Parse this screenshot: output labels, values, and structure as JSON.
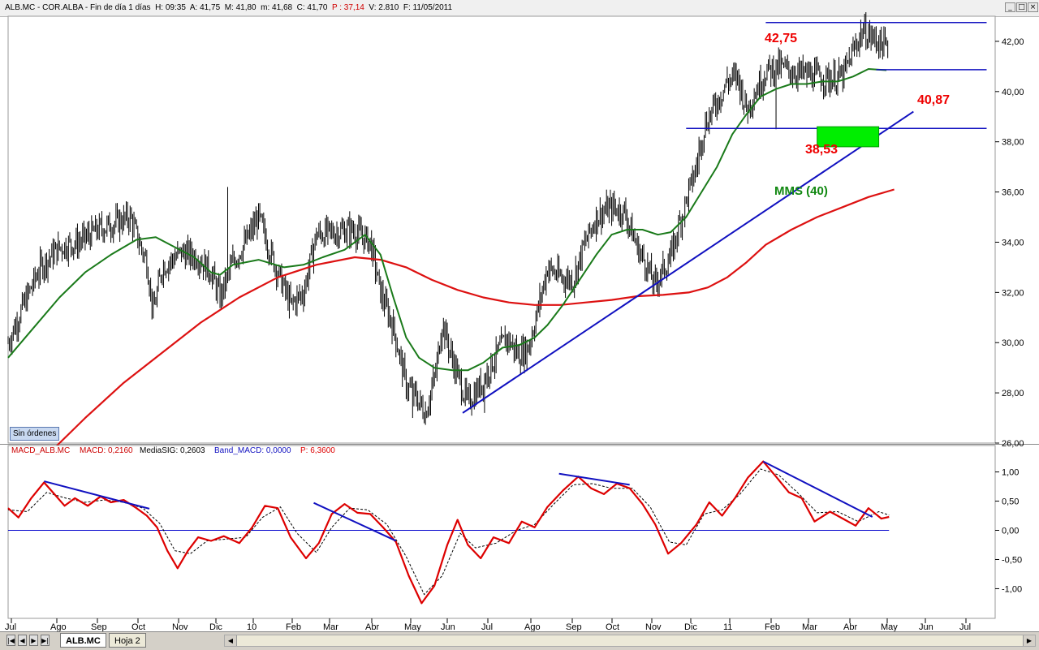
{
  "window": {
    "title_pre": "ALB.MC - COR.ALBA - Fin de día 1 días  H: 09:35  A: 41,75  M: 41,80  m: 41,68  C: 41,70  ",
    "title_p": "P : 37,14",
    "title_post": "  V: 2.810  F: 11/05/2011",
    "buttons": [
      "_",
      "□",
      "×"
    ]
  },
  "badge": "Sin órdenes",
  "annotations": {
    "high": "42,75",
    "support": "40,87",
    "low": "38,53",
    "ma_label": "MMS (40)"
  },
  "macd_header": {
    "name": "MACD_ALB.MC",
    "macd": "MACD: 0,2160",
    "signal": "MediaSIG: 0,2603",
    "band": "Band_MACD: 0,0000",
    "p": "P: 6,3600"
  },
  "tabs": {
    "nav": [
      "|◀",
      "◀",
      "▶",
      "▶|"
    ],
    "sheets": [
      "ALB.MC",
      "Hoja 2"
    ]
  },
  "colors": {
    "price": "#000000",
    "mma40": "#1a7a1a",
    "mma200": "#dd1111",
    "trend": "#1010c0",
    "macd": "#dd0000",
    "signal": "#000000",
    "box": "#00ee00"
  },
  "chart_data": [
    {
      "type": "ohlc",
      "ylim": [
        26,
        43
      ],
      "yticks": [
        "26,00",
        "28,00",
        "30,00",
        "32,00",
        "34,00",
        "36,00",
        "38,00",
        "40,00",
        "42,00"
      ],
      "x_ticks": [
        "Jul",
        "Ago",
        "Sep",
        "Oct",
        "Nov",
        "Dic",
        "10",
        "Feb",
        "Mar",
        "Abr",
        "May",
        "Jun",
        "Jul",
        "Ago",
        "Sep",
        "Oct",
        "Nov",
        "Dic",
        "11",
        "Feb",
        "Mar",
        "Abr",
        "May",
        "Jun",
        "Jul"
      ],
      "close_path": [
        [
          0,
          30.0
        ],
        [
          12,
          31.5
        ],
        [
          25,
          33.0
        ],
        [
          40,
          33.8
        ],
        [
          55,
          34.0
        ],
        [
          70,
          34.5
        ],
        [
          85,
          34.8
        ],
        [
          95,
          35.0
        ],
        [
          102,
          34.0
        ],
        [
          108,
          33.2
        ],
        [
          113,
          31.2
        ],
        [
          120,
          33.0
        ],
        [
          135,
          33.6
        ],
        [
          148,
          33.4
        ],
        [
          158,
          32.8
        ],
        [
          165,
          31.8
        ],
        [
          175,
          33.2
        ],
        [
          185,
          34.0
        ],
        [
          195,
          35.0
        ],
        [
          205,
          33.5
        ],
        [
          213,
          32.4
        ],
        [
          220,
          31.5
        ],
        [
          230,
          32.0
        ],
        [
          240,
          34.3
        ],
        [
          255,
          34.4
        ],
        [
          268,
          34.5
        ],
        [
          282,
          34.0
        ],
        [
          290,
          32.0
        ],
        [
          300,
          30.6
        ],
        [
          310,
          28.3
        ],
        [
          318,
          27.8
        ],
        [
          325,
          27.2
        ],
        [
          333,
          28.8
        ],
        [
          338,
          30.8
        ],
        [
          345,
          29.5
        ],
        [
          352,
          28.4
        ],
        [
          358,
          27.6
        ],
        [
          368,
          28.3
        ],
        [
          378,
          29.3
        ],
        [
          388,
          30.2
        ],
        [
          398,
          29.5
        ],
        [
          405,
          29.8
        ],
        [
          412,
          31.2
        ],
        [
          420,
          33.0
        ],
        [
          430,
          32.6
        ],
        [
          440,
          32.5
        ],
        [
          448,
          33.8
        ],
        [
          458,
          35.0
        ],
        [
          470,
          35.4
        ],
        [
          480,
          35.2
        ],
        [
          490,
          33.8
        ],
        [
          498,
          33.0
        ],
        [
          503,
          32.3
        ],
        [
          510,
          32.9
        ],
        [
          516,
          33.4
        ],
        [
          522,
          34.6
        ],
        [
          530,
          36.0
        ],
        [
          536,
          37.0
        ],
        [
          542,
          38.6
        ],
        [
          552,
          39.6
        ],
        [
          560,
          40.4
        ],
        [
          568,
          40.6
        ],
        [
          575,
          39.3
        ],
        [
          582,
          40.0
        ],
        [
          590,
          40.8
        ],
        [
          600,
          41.0
        ],
        [
          610,
          40.8
        ],
        [
          620,
          40.7
        ],
        [
          630,
          40.6
        ],
        [
          640,
          40.5
        ],
        [
          650,
          40.6
        ],
        [
          658,
          41.6
        ],
        [
          665,
          42.4
        ],
        [
          675,
          42.1
        ],
        [
          685,
          41.7
        ]
      ],
      "spikes": [
        [
          171,
          36.2
        ],
        [
          315,
          27.0
        ],
        [
          371,
          27.2
        ],
        [
          470,
          35.8
        ],
        [
          538,
          38.2
        ],
        [
          560,
          41.0
        ],
        [
          598,
          38.5
        ],
        [
          666,
          42.75
        ]
      ],
      "mma40": [
        [
          0,
          29.4
        ],
        [
          20,
          30.6
        ],
        [
          40,
          31.8
        ],
        [
          60,
          32.8
        ],
        [
          80,
          33.5
        ],
        [
          100,
          34.1
        ],
        [
          115,
          34.2
        ],
        [
          130,
          33.8
        ],
        [
          145,
          33.4
        ],
        [
          158,
          32.8
        ],
        [
          165,
          32.7
        ],
        [
          175,
          33.1
        ],
        [
          195,
          33.3
        ],
        [
          215,
          33.0
        ],
        [
          230,
          33.1
        ],
        [
          245,
          33.4
        ],
        [
          262,
          33.7
        ],
        [
          278,
          34.3
        ],
        [
          290,
          33.5
        ],
        [
          300,
          31.8
        ],
        [
          310,
          30.2
        ],
        [
          320,
          29.4
        ],
        [
          332,
          29.0
        ],
        [
          346,
          28.9
        ],
        [
          358,
          28.9
        ],
        [
          370,
          29.2
        ],
        [
          385,
          29.8
        ],
        [
          398,
          29.9
        ],
        [
          410,
          30.2
        ],
        [
          420,
          30.7
        ],
        [
          432,
          31.5
        ],
        [
          445,
          32.5
        ],
        [
          458,
          33.5
        ],
        [
          470,
          34.3
        ],
        [
          482,
          34.5
        ],
        [
          494,
          34.5
        ],
        [
          506,
          34.3
        ],
        [
          516,
          34.4
        ],
        [
          528,
          35.0
        ],
        [
          540,
          36.0
        ],
        [
          552,
          37.0
        ],
        [
          564,
          38.3
        ],
        [
          575,
          39.1
        ],
        [
          586,
          39.8
        ],
        [
          598,
          40.1
        ],
        [
          610,
          40.3
        ],
        [
          622,
          40.3
        ],
        [
          634,
          40.4
        ],
        [
          646,
          40.4
        ],
        [
          658,
          40.6
        ],
        [
          670,
          40.9
        ],
        [
          684,
          40.85
        ]
      ],
      "mma200": [
        [
          0,
          24.0
        ],
        [
          30,
          25.5
        ],
        [
          60,
          27.0
        ],
        [
          90,
          28.4
        ],
        [
          120,
          29.6
        ],
        [
          150,
          30.8
        ],
        [
          180,
          31.8
        ],
        [
          210,
          32.6
        ],
        [
          240,
          33.1
        ],
        [
          270,
          33.4
        ],
        [
          290,
          33.3
        ],
        [
          310,
          33.0
        ],
        [
          330,
          32.5
        ],
        [
          350,
          32.1
        ],
        [
          370,
          31.8
        ],
        [
          390,
          31.6
        ],
        [
          410,
          31.5
        ],
        [
          430,
          31.5
        ],
        [
          450,
          31.6
        ],
        [
          470,
          31.7
        ],
        [
          490,
          31.85
        ],
        [
          510,
          31.9
        ],
        [
          530,
          32.0
        ],
        [
          545,
          32.2
        ],
        [
          560,
          32.6
        ],
        [
          575,
          33.2
        ],
        [
          590,
          33.9
        ],
        [
          610,
          34.5
        ],
        [
          630,
          35.0
        ],
        [
          650,
          35.4
        ],
        [
          670,
          35.8
        ],
        [
          690,
          36.1
        ]
      ],
      "levels": [
        {
          "value": 42.75,
          "x0": 590,
          "x1": 762
        },
        {
          "value": 40.87,
          "x0": 676,
          "x1": 762
        },
        {
          "value": 38.53,
          "x0": 528,
          "x1": 762
        }
      ],
      "trend_line": [
        [
          354,
          27.2
        ],
        [
          705,
          39.2
        ]
      ],
      "box": {
        "x0": 630,
        "x1": 678,
        "y_low": 37.8,
        "y_high": 38.6
      }
    },
    {
      "type": "line",
      "title": "MACD_ALB.MC",
      "ylim": [
        -1.55,
        1.3
      ],
      "yticks": [
        "1,00",
        "0,50",
        "0,00",
        "-0,50",
        "-1,00"
      ],
      "zero_line": 0.0,
      "macd": [
        [
          0,
          0.38
        ],
        [
          8,
          0.22
        ],
        [
          18,
          0.55
        ],
        [
          28,
          0.82
        ],
        [
          36,
          0.62
        ],
        [
          44,
          0.42
        ],
        [
          52,
          0.55
        ],
        [
          62,
          0.42
        ],
        [
          72,
          0.58
        ],
        [
          80,
          0.48
        ],
        [
          90,
          0.52
        ],
        [
          100,
          0.38
        ],
        [
          108,
          0.25
        ],
        [
          116,
          0.05
        ],
        [
          124,
          -0.35
        ],
        [
          132,
          -0.65
        ],
        [
          140,
          -0.35
        ],
        [
          148,
          -0.12
        ],
        [
          158,
          -0.18
        ],
        [
          168,
          -0.1
        ],
        [
          180,
          -0.22
        ],
        [
          190,
          0.05
        ],
        [
          200,
          0.42
        ],
        [
          210,
          0.38
        ],
        [
          220,
          -0.12
        ],
        [
          232,
          -0.48
        ],
        [
          242,
          -0.22
        ],
        [
          252,
          0.28
        ],
        [
          262,
          0.45
        ],
        [
          272,
          0.3
        ],
        [
          282,
          0.28
        ],
        [
          292,
          0.05
        ],
        [
          302,
          -0.2
        ],
        [
          312,
          -0.78
        ],
        [
          322,
          -1.25
        ],
        [
          332,
          -0.95
        ],
        [
          342,
          -0.25
        ],
        [
          350,
          0.18
        ],
        [
          358,
          -0.25
        ],
        [
          368,
          -0.48
        ],
        [
          378,
          -0.12
        ],
        [
          390,
          -0.22
        ],
        [
          400,
          0.15
        ],
        [
          410,
          0.05
        ],
        [
          420,
          0.4
        ],
        [
          432,
          0.68
        ],
        [
          444,
          0.92
        ],
        [
          454,
          0.72
        ],
        [
          464,
          0.62
        ],
        [
          474,
          0.8
        ],
        [
          484,
          0.72
        ],
        [
          494,
          0.45
        ],
        [
          504,
          0.1
        ],
        [
          514,
          -0.4
        ],
        [
          524,
          -0.22
        ],
        [
          536,
          0.1
        ],
        [
          546,
          0.48
        ],
        [
          556,
          0.25
        ],
        [
          566,
          0.55
        ],
        [
          576,
          0.9
        ],
        [
          588,
          1.18
        ],
        [
          598,
          0.92
        ],
        [
          608,
          0.65
        ],
        [
          618,
          0.55
        ],
        [
          628,
          0.15
        ],
        [
          640,
          0.32
        ],
        [
          650,
          0.2
        ],
        [
          660,
          0.08
        ],
        [
          670,
          0.38
        ],
        [
          680,
          0.2
        ],
        [
          686,
          0.23
        ]
      ],
      "signal": [
        [
          0,
          0.35
        ],
        [
          15,
          0.32
        ],
        [
          30,
          0.65
        ],
        [
          45,
          0.55
        ],
        [
          60,
          0.48
        ],
        [
          75,
          0.52
        ],
        [
          90,
          0.48
        ],
        [
          105,
          0.38
        ],
        [
          118,
          0.12
        ],
        [
          130,
          -0.35
        ],
        [
          142,
          -0.4
        ],
        [
          155,
          -0.18
        ],
        [
          170,
          -0.15
        ],
        [
          185,
          -0.12
        ],
        [
          198,
          0.22
        ],
        [
          212,
          0.4
        ],
        [
          225,
          -0.05
        ],
        [
          240,
          -0.38
        ],
        [
          252,
          0.05
        ],
        [
          266,
          0.38
        ],
        [
          280,
          0.35
        ],
        [
          295,
          0.1
        ],
        [
          310,
          -0.45
        ],
        [
          324,
          -1.1
        ],
        [
          338,
          -0.78
        ],
        [
          352,
          -0.05
        ],
        [
          364,
          -0.3
        ],
        [
          380,
          -0.22
        ],
        [
          396,
          0.0
        ],
        [
          410,
          0.1
        ],
        [
          425,
          0.45
        ],
        [
          440,
          0.78
        ],
        [
          455,
          0.8
        ],
        [
          470,
          0.72
        ],
        [
          486,
          0.72
        ],
        [
          500,
          0.4
        ],
        [
          515,
          -0.2
        ],
        [
          528,
          -0.25
        ],
        [
          542,
          0.28
        ],
        [
          556,
          0.35
        ],
        [
          570,
          0.62
        ],
        [
          586,
          1.05
        ],
        [
          600,
          0.95
        ],
        [
          616,
          0.62
        ],
        [
          630,
          0.3
        ],
        [
          646,
          0.32
        ],
        [
          662,
          0.15
        ],
        [
          678,
          0.32
        ],
        [
          686,
          0.26
        ]
      ],
      "trend_lines": [
        [
          [
            28,
            0.84
          ],
          [
            110,
            0.37
          ]
        ],
        [
          [
            238,
            0.47
          ],
          [
            302,
            -0.18
          ]
        ],
        [
          [
            429,
            0.97
          ],
          [
            484,
            0.78
          ]
        ],
        [
          [
            588,
            1.18
          ],
          [
            673,
            0.23
          ]
        ]
      ]
    }
  ]
}
